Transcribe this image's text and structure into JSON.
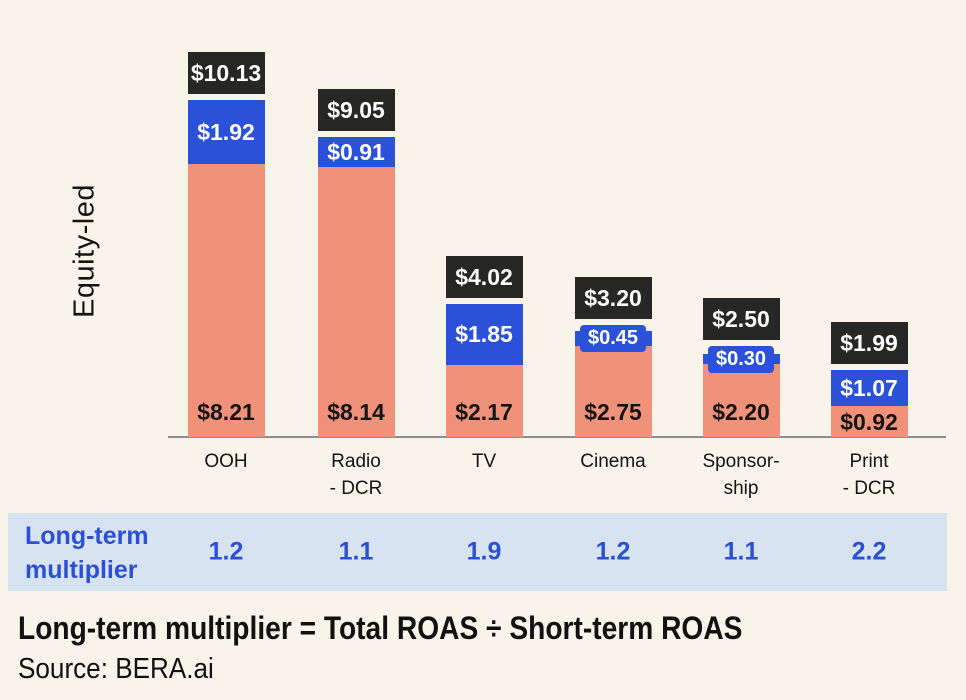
{
  "colors": {
    "background": "#f8f4ea",
    "bar_orange": "#f0927a",
    "bar_blue": "#2b51d8",
    "total_box_black": "#272725",
    "band_light_blue": "#d8e3f1",
    "multiplier_text_blue": "#2b50d6",
    "axis_line_gray": "#8d8d8d",
    "text_black": "#141414",
    "value_text_white": "#ffffff"
  },
  "chart_data": {
    "type": "bar",
    "stacked": true,
    "ylabel": "Equity-led",
    "value_prefix": "$",
    "categories": [
      "OOH",
      "Radio\n- DCR",
      "TV",
      "Cinema",
      "Sponsor-\nship",
      "Print\n- DCR"
    ],
    "series": [
      {
        "name": "orange-bottom-segment",
        "color": "#f0927a",
        "values": [
          8.21,
          8.14,
          2.17,
          2.75,
          2.2,
          0.92
        ],
        "labels": [
          "$8.21",
          "$8.14",
          "$2.17",
          "$2.75",
          "$2.20",
          "$0.92"
        ]
      },
      {
        "name": "blue-top-segment",
        "color": "#2b51d8",
        "values": [
          1.92,
          0.91,
          1.85,
          0.45,
          0.3,
          1.07
        ],
        "labels": [
          "$1.92",
          "$0.91",
          "$1.85",
          "$0.45",
          "$0.30",
          "$1.07"
        ]
      }
    ],
    "totals": [
      10.13,
      9.05,
      4.02,
      3.2,
      2.5,
      1.99
    ],
    "total_labels": [
      "$10.13",
      "$9.05",
      "$4.02",
      "$3.20",
      "$2.50",
      "$1.99"
    ],
    "grid": false,
    "legend": false
  },
  "multiplier_row": {
    "label": "Long-term\nmultiplier",
    "values": [
      "1.2",
      "1.1",
      "1.9",
      "1.2",
      "1.1",
      "2.2"
    ]
  },
  "footer": {
    "formula": "Long-term multiplier = Total ROAS ÷ Short-term ROAS",
    "source": "Source: BERA.ai"
  }
}
